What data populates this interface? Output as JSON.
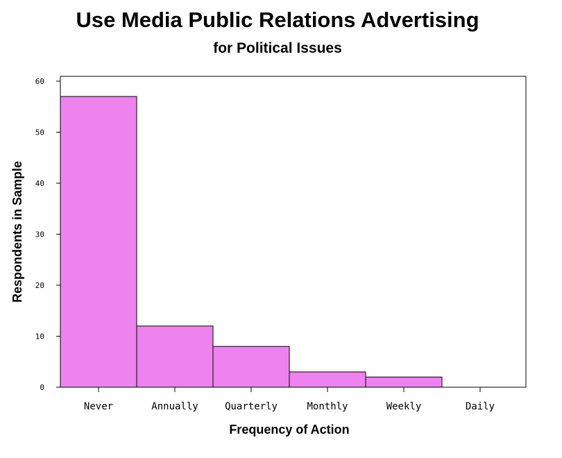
{
  "chart_data": {
    "type": "bar",
    "title": "Use Media Public Relations Advertising",
    "subtitle": "for Political Issues",
    "xlabel": "Frequency of Action",
    "ylabel": "Respondents in Sample",
    "categories": [
      "Never",
      "Annually",
      "Quarterly",
      "Monthly",
      "Weekly",
      "Daily"
    ],
    "values": [
      57,
      12,
      8,
      3,
      2,
      0
    ],
    "ylim": [
      0,
      60
    ],
    "yticks": [
      0,
      10,
      20,
      30,
      40,
      50,
      60
    ],
    "ytick_labels": [
      "0",
      "10",
      "20",
      "30",
      "40",
      "50",
      "60"
    ],
    "grid": false,
    "bar_color": "#ee82ee",
    "bar_outline_color": "#000000"
  }
}
